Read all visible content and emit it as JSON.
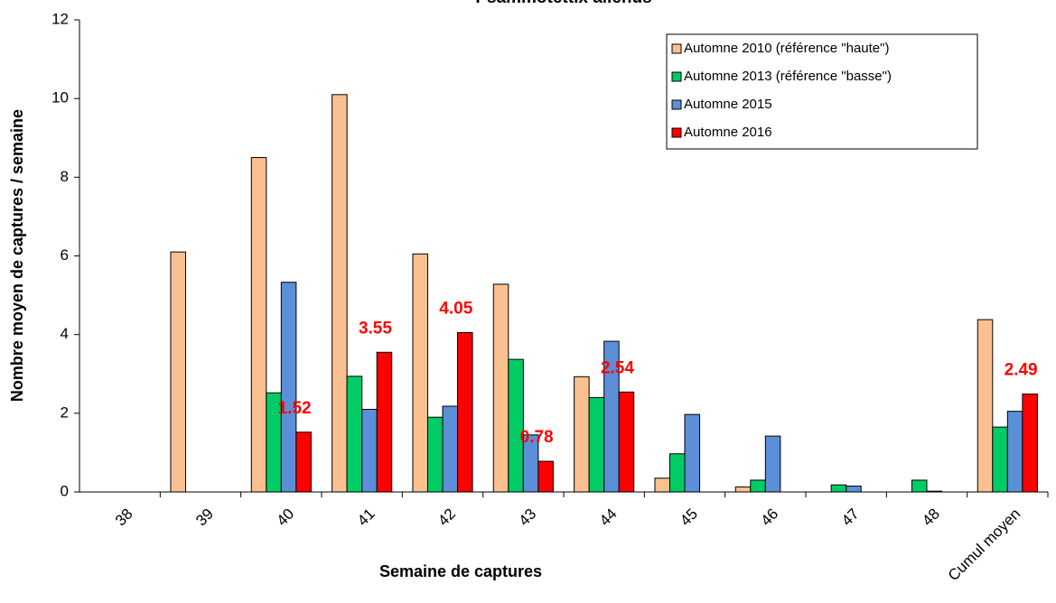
{
  "chart_data": {
    "type": "bar",
    "title": "Psammotettix alienus",
    "xlabel": "Semaine de captures",
    "ylabel": "Nombre moyen de captures / semaine",
    "categories": [
      "38",
      "39",
      "40",
      "41",
      "42",
      "43",
      "44",
      "45",
      "46",
      "47",
      "48",
      "Cumul moyen"
    ],
    "series": [
      {
        "name": "Automne 2010 (référence \"haute\")",
        "color": "#fac090",
        "values": [
          null,
          6.1,
          8.5,
          10.1,
          6.05,
          5.28,
          2.93,
          0.35,
          0.13,
          null,
          null,
          4.38
        ]
      },
      {
        "name": "Automne 2013 (référence \"basse\")",
        "color": "#00cc66",
        "values": [
          null,
          null,
          2.52,
          2.94,
          1.9,
          3.37,
          2.4,
          0.97,
          0.3,
          0.18,
          0.3,
          1.65
        ]
      },
      {
        "name": "Automne 2015",
        "color": "#5b8fd8",
        "values": [
          null,
          null,
          5.33,
          2.1,
          2.18,
          1.45,
          3.83,
          1.97,
          1.42,
          0.15,
          0.02,
          2.05
        ]
      },
      {
        "name": "Automne 2016",
        "color": "#ff0000",
        "values": [
          null,
          null,
          1.52,
          3.55,
          4.05,
          0.78,
          2.54,
          null,
          null,
          null,
          null,
          2.49
        ],
        "show_labels": true
      }
    ],
    "ylim": [
      0,
      12
    ],
    "yticks": [
      0,
      2,
      4,
      6,
      8,
      10,
      12
    ],
    "grid": false,
    "legend": "upper right"
  }
}
